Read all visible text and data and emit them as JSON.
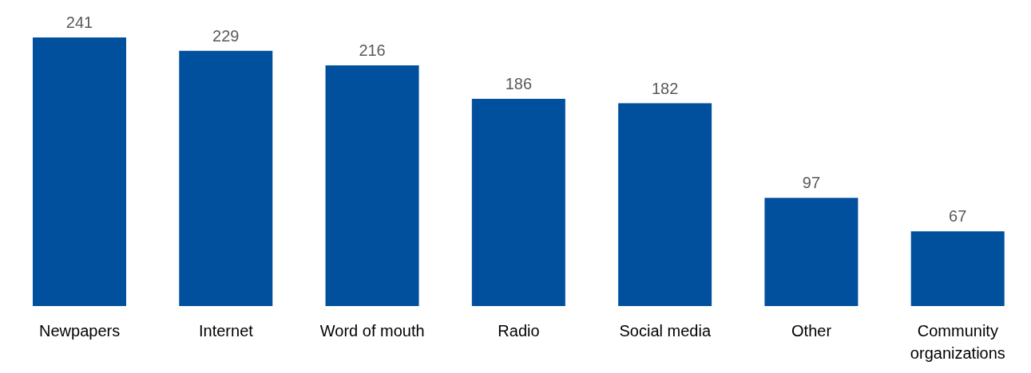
{
  "chart_data": {
    "type": "bar",
    "categories": [
      "Newpapers",
      "Internet",
      "Word of mouth",
      "Radio",
      "Social media",
      "Other",
      "Community organizations"
    ],
    "values": [
      241,
      229,
      216,
      186,
      182,
      97,
      67
    ],
    "color": "#00509d",
    "data_labels": true,
    "grid": false,
    "legend": false
  }
}
